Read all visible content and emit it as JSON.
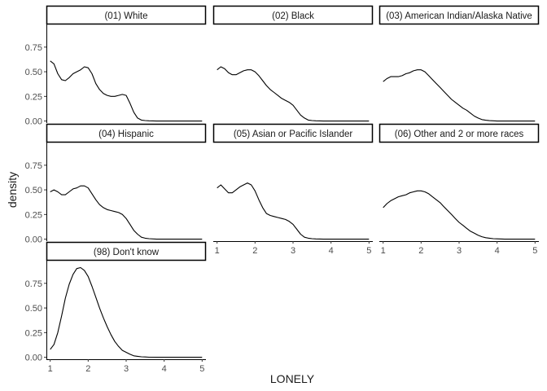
{
  "chart_data": {
    "type": "line",
    "facet_layout": {
      "ncol": 3,
      "nrow": 3
    },
    "xlabel": "LONELY",
    "ylabel": "density",
    "xlim": [
      0.9,
      5.1
    ],
    "ylim": [
      -0.02,
      0.98
    ],
    "x_ticks": [
      1,
      2,
      3,
      4,
      5
    ],
    "y_ticks": [
      0.0,
      0.25,
      0.5,
      0.75
    ],
    "y_tick_labels": [
      "0.00",
      "0.25",
      "0.50",
      "0.75"
    ],
    "grid": false,
    "line_color": "#000000",
    "panels": [
      {
        "title": "(01) White",
        "x": [
          1.0,
          1.1,
          1.2,
          1.3,
          1.4,
          1.5,
          1.6,
          1.7,
          1.8,
          1.9,
          2.0,
          2.1,
          2.2,
          2.3,
          2.4,
          2.5,
          2.6,
          2.7,
          2.8,
          2.9,
          3.0,
          3.1,
          3.2,
          3.3,
          3.4,
          3.5,
          3.6,
          3.8,
          4.0,
          4.2,
          4.5,
          4.8,
          5.0
        ],
        "y": [
          0.61,
          0.58,
          0.48,
          0.42,
          0.41,
          0.44,
          0.48,
          0.5,
          0.52,
          0.55,
          0.54,
          0.48,
          0.38,
          0.32,
          0.28,
          0.26,
          0.25,
          0.25,
          0.26,
          0.27,
          0.26,
          0.18,
          0.09,
          0.03,
          0.01,
          0.005,
          0.002,
          0.0,
          0.0,
          0.0,
          0.0,
          0.0,
          0.0
        ]
      },
      {
        "title": "(02) Black",
        "x": [
          1.0,
          1.1,
          1.2,
          1.3,
          1.4,
          1.5,
          1.6,
          1.7,
          1.8,
          1.9,
          2.0,
          2.1,
          2.2,
          2.3,
          2.4,
          2.5,
          2.6,
          2.7,
          2.8,
          2.9,
          3.0,
          3.1,
          3.2,
          3.3,
          3.4,
          3.5,
          3.6,
          3.8,
          4.0,
          4.2,
          4.5,
          4.8,
          5.0
        ],
        "y": [
          0.52,
          0.55,
          0.53,
          0.49,
          0.47,
          0.47,
          0.49,
          0.51,
          0.52,
          0.52,
          0.5,
          0.46,
          0.41,
          0.36,
          0.32,
          0.29,
          0.26,
          0.23,
          0.21,
          0.19,
          0.16,
          0.11,
          0.06,
          0.03,
          0.01,
          0.005,
          0.002,
          0.0,
          0.0,
          0.0,
          0.0,
          0.0,
          0.0
        ]
      },
      {
        "title": "(03) American Indian/Alaska Native",
        "x": [
          1.0,
          1.1,
          1.2,
          1.3,
          1.4,
          1.5,
          1.6,
          1.7,
          1.8,
          1.9,
          2.0,
          2.1,
          2.2,
          2.3,
          2.4,
          2.5,
          2.6,
          2.7,
          2.8,
          2.9,
          3.0,
          3.1,
          3.2,
          3.3,
          3.4,
          3.5,
          3.6,
          3.7,
          3.8,
          3.9,
          4.0,
          4.2,
          4.5,
          4.8,
          5.0
        ],
        "y": [
          0.4,
          0.43,
          0.45,
          0.45,
          0.45,
          0.46,
          0.48,
          0.49,
          0.51,
          0.52,
          0.52,
          0.5,
          0.46,
          0.42,
          0.38,
          0.34,
          0.3,
          0.26,
          0.22,
          0.19,
          0.16,
          0.13,
          0.11,
          0.08,
          0.05,
          0.03,
          0.015,
          0.008,
          0.004,
          0.002,
          0.0,
          0.0,
          0.0,
          0.0,
          0.0
        ]
      },
      {
        "title": "(04) Hispanic",
        "x": [
          1.0,
          1.1,
          1.2,
          1.3,
          1.4,
          1.5,
          1.6,
          1.7,
          1.8,
          1.9,
          2.0,
          2.1,
          2.2,
          2.3,
          2.4,
          2.5,
          2.6,
          2.7,
          2.8,
          2.9,
          3.0,
          3.1,
          3.2,
          3.3,
          3.4,
          3.5,
          3.6,
          3.8,
          4.0,
          4.2,
          4.5,
          4.8,
          5.0
        ],
        "y": [
          0.48,
          0.5,
          0.48,
          0.45,
          0.45,
          0.48,
          0.51,
          0.52,
          0.54,
          0.54,
          0.52,
          0.46,
          0.4,
          0.35,
          0.32,
          0.3,
          0.29,
          0.28,
          0.27,
          0.25,
          0.21,
          0.15,
          0.09,
          0.05,
          0.02,
          0.01,
          0.005,
          0.0,
          0.0,
          0.0,
          0.0,
          0.0,
          0.0
        ]
      },
      {
        "title": "(05) Asian or Pacific Islander",
        "x": [
          1.0,
          1.1,
          1.2,
          1.3,
          1.4,
          1.5,
          1.6,
          1.7,
          1.8,
          1.9,
          2.0,
          2.1,
          2.2,
          2.3,
          2.4,
          2.5,
          2.6,
          2.7,
          2.8,
          2.9,
          3.0,
          3.1,
          3.2,
          3.3,
          3.4,
          3.5,
          3.6,
          3.8,
          4.0,
          4.2,
          4.5,
          4.8,
          5.0
        ],
        "y": [
          0.52,
          0.55,
          0.51,
          0.47,
          0.47,
          0.5,
          0.53,
          0.55,
          0.57,
          0.55,
          0.49,
          0.4,
          0.32,
          0.26,
          0.24,
          0.23,
          0.22,
          0.21,
          0.2,
          0.18,
          0.15,
          0.1,
          0.05,
          0.02,
          0.01,
          0.005,
          0.002,
          0.0,
          0.0,
          0.0,
          0.0,
          0.0,
          0.0
        ]
      },
      {
        "title": "(06) Other and 2 or more races",
        "x": [
          1.0,
          1.1,
          1.2,
          1.3,
          1.4,
          1.5,
          1.6,
          1.7,
          1.8,
          1.9,
          2.0,
          2.1,
          2.2,
          2.3,
          2.4,
          2.5,
          2.6,
          2.7,
          2.8,
          2.9,
          3.0,
          3.1,
          3.2,
          3.3,
          3.4,
          3.5,
          3.6,
          3.7,
          3.8,
          3.9,
          4.0,
          4.2,
          4.5,
          4.8,
          5.0
        ],
        "y": [
          0.32,
          0.36,
          0.39,
          0.41,
          0.43,
          0.44,
          0.45,
          0.47,
          0.48,
          0.49,
          0.49,
          0.48,
          0.46,
          0.43,
          0.4,
          0.37,
          0.33,
          0.29,
          0.25,
          0.21,
          0.17,
          0.14,
          0.11,
          0.08,
          0.06,
          0.04,
          0.025,
          0.015,
          0.01,
          0.005,
          0.003,
          0.0,
          0.0,
          0.0,
          0.0
        ]
      },
      {
        "title": "(98) Don't know",
        "x": [
          1.0,
          1.1,
          1.2,
          1.3,
          1.4,
          1.5,
          1.6,
          1.7,
          1.8,
          1.9,
          2.0,
          2.1,
          2.2,
          2.3,
          2.4,
          2.5,
          2.6,
          2.7,
          2.8,
          2.9,
          3.0,
          3.1,
          3.2,
          3.3,
          3.4,
          3.5,
          3.6,
          3.8,
          4.0,
          4.2,
          4.5,
          4.8,
          5.0
        ],
        "y": [
          0.08,
          0.13,
          0.25,
          0.42,
          0.6,
          0.74,
          0.84,
          0.9,
          0.91,
          0.88,
          0.82,
          0.72,
          0.61,
          0.5,
          0.4,
          0.31,
          0.23,
          0.16,
          0.11,
          0.07,
          0.05,
          0.03,
          0.015,
          0.01,
          0.005,
          0.003,
          0.001,
          0.0,
          0.0,
          0.0,
          0.0,
          0.0,
          0.0
        ]
      }
    ]
  }
}
